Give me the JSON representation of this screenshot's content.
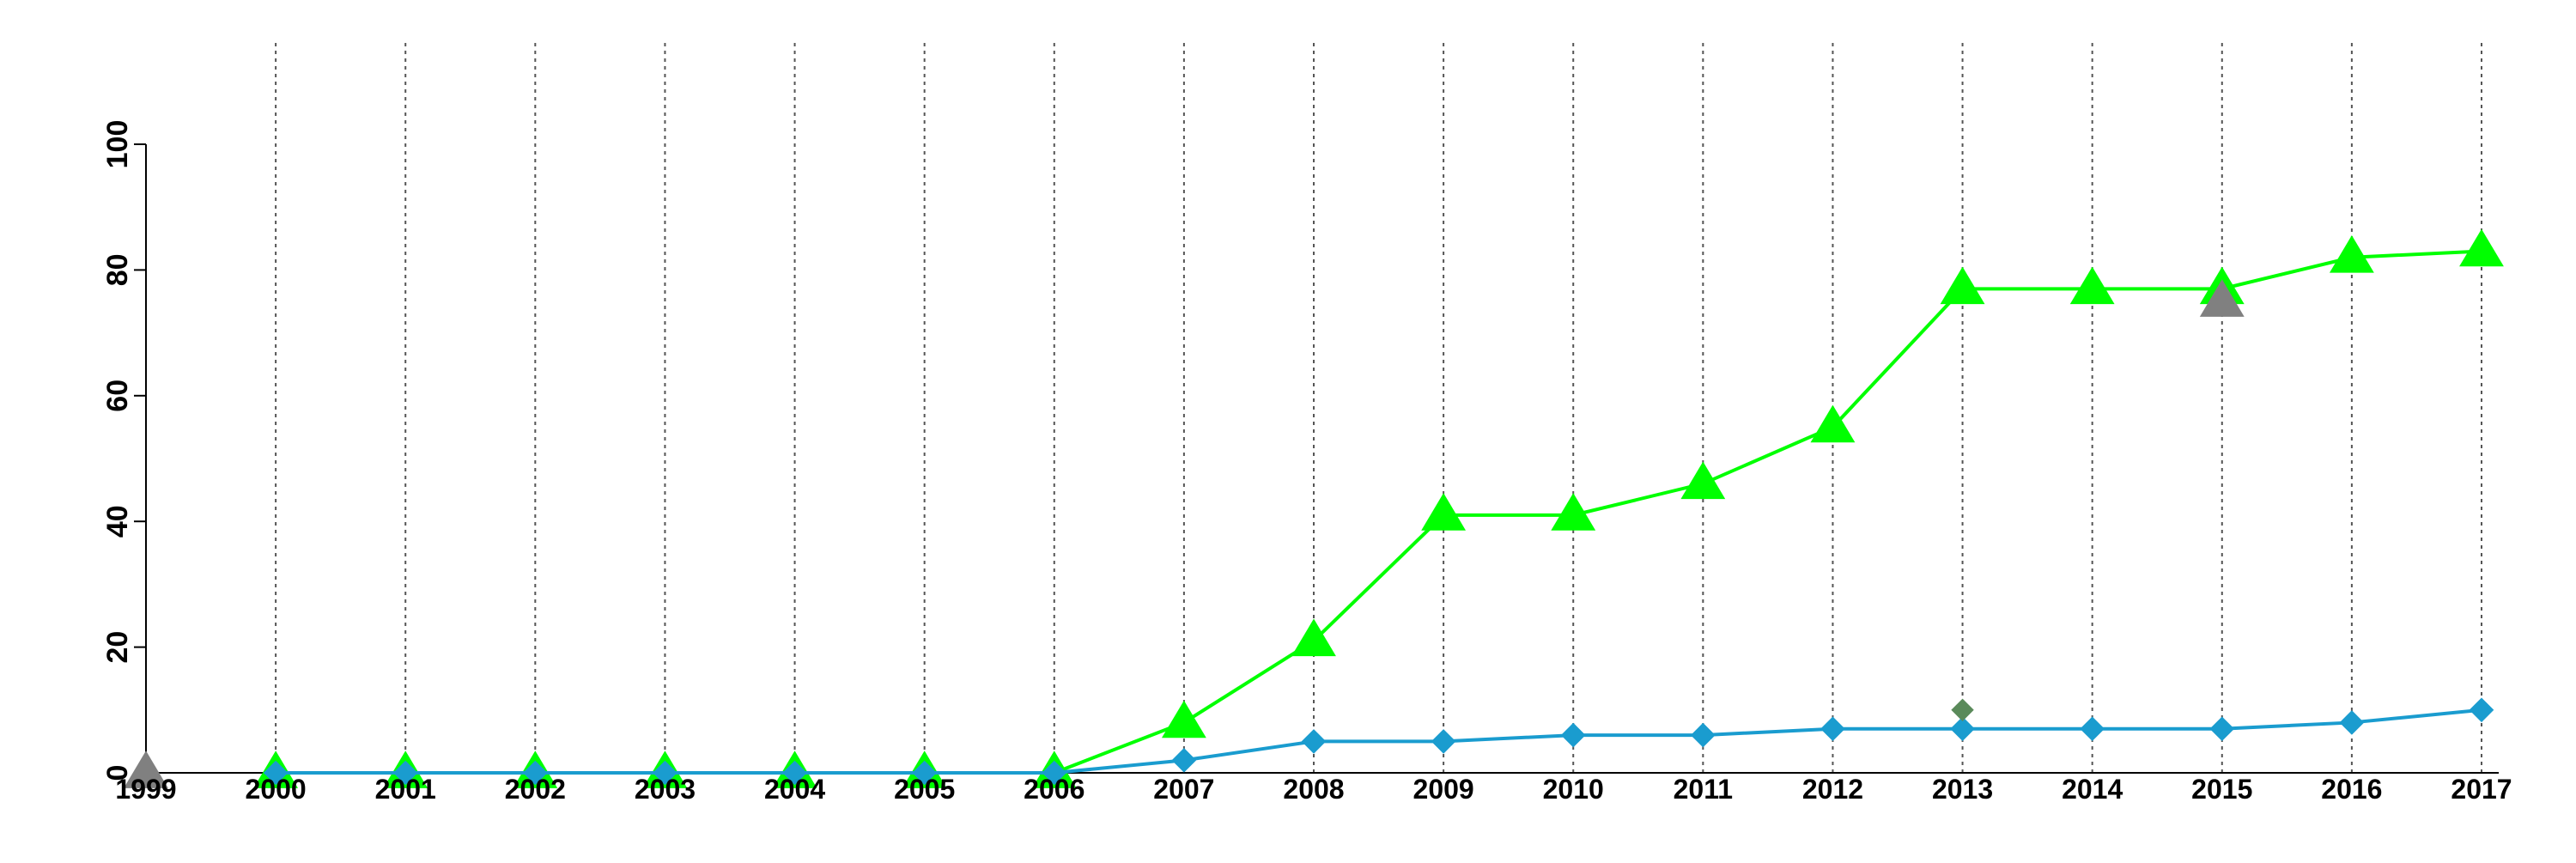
{
  "colors": {
    "green_series": "#00ff00",
    "blue_series": "#1a9ccf",
    "gray_marker": "#808080",
    "dark_green_marker": "#5a8a5a",
    "gridline": "#555555",
    "axis": "#000000"
  },
  "chart_data": {
    "type": "line",
    "title": "",
    "xlabel": "",
    "ylabel": "",
    "categories": [
      "1999",
      "2000",
      "2001",
      "2002",
      "2003",
      "2004",
      "2005",
      "2006",
      "2007",
      "2008",
      "2009",
      "2010",
      "2011",
      "2012",
      "2013",
      "2014",
      "2015",
      "2016",
      "2017"
    ],
    "ylim": [
      0,
      100
    ],
    "yticks": [
      "0",
      "20",
      "40",
      "60",
      "80",
      "100"
    ],
    "grid": "vertical-dotted",
    "legend": "none",
    "series": [
      {
        "marker": "triangle",
        "color": "#00ff00",
        "values": [
          null,
          0,
          0,
          0,
          0,
          0,
          0,
          0,
          8,
          21,
          41,
          41,
          46,
          55,
          77,
          77,
          77,
          82,
          83
        ]
      },
      {
        "marker": "diamond",
        "color": "#1a9ccf",
        "values": [
          null,
          0,
          0,
          0,
          0,
          0,
          0,
          0,
          2,
          5,
          5,
          6,
          6,
          7,
          7,
          7,
          7,
          8,
          10
        ]
      }
    ],
    "extra_points": [
      {
        "x": "1999",
        "y": 0,
        "marker": "triangle",
        "color": "#808080"
      },
      {
        "x": "2015",
        "y": 75,
        "marker": "triangle",
        "color": "#808080"
      },
      {
        "x": "2013",
        "y": 10,
        "marker": "diamond",
        "color": "#5a8a5a"
      }
    ]
  }
}
